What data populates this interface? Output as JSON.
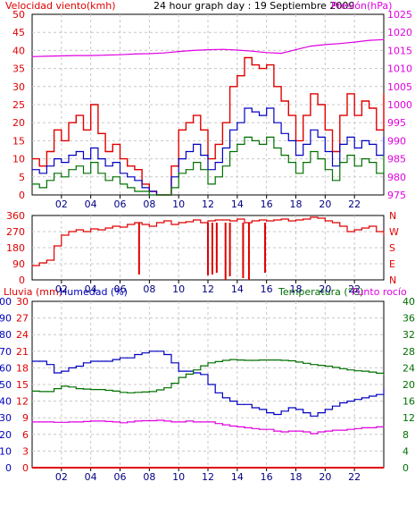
{
  "chart_data": [
    {
      "type": "line",
      "title": "24 hour graph day : 19 Septiembre 2009",
      "left_label": "Velocidad viento(kmh)",
      "right_label": "Presión(hPa)",
      "left_ticks": [
        "0",
        "5",
        "10",
        "15",
        "20",
        "25",
        "30",
        "35",
        "40",
        "45",
        "50"
      ],
      "right_ticks": [
        "975",
        "980",
        "985",
        "990",
        "995",
        "1000",
        "1005",
        "1010",
        "1015",
        "1020",
        "1025"
      ],
      "x_ticks": [
        "02",
        "04",
        "06",
        "08",
        "10",
        "12",
        "14",
        "16",
        "18",
        "20",
        "22"
      ],
      "xlim": [
        0,
        24
      ],
      "ylim_left": [
        0,
        50
      ],
      "ylim_right": [
        975,
        1025
      ],
      "grid": true,
      "series": [
        {
          "key": "gust",
          "axis": "left",
          "color": "#e00000",
          "x": [
            0,
            0.5,
            1,
            1.5,
            2,
            2.5,
            3,
            3.5,
            4,
            4.5,
            5,
            5.5,
            6,
            6.5,
            7,
            7.5,
            8,
            8.5,
            9,
            9.5,
            10,
            10.5,
            11,
            11.5,
            12,
            12.5,
            13,
            13.5,
            14,
            14.5,
            15,
            15.5,
            16,
            16.5,
            17,
            17.5,
            18,
            18.5,
            19,
            19.5,
            20,
            20.5,
            21,
            21.5,
            22,
            22.5,
            23,
            23.5,
            24
          ],
          "values": [
            10,
            8,
            12,
            18,
            15,
            20,
            22,
            18,
            25,
            17,
            12,
            14,
            10,
            8,
            7,
            3,
            1,
            0,
            0,
            8,
            18,
            20,
            22,
            18,
            10,
            14,
            20,
            30,
            33,
            38,
            36,
            35,
            36,
            30,
            26,
            22,
            15,
            22,
            28,
            25,
            18,
            12,
            22,
            28,
            22,
            26,
            24,
            18,
            28
          ]
        },
        {
          "key": "avg",
          "axis": "left",
          "color": "#0000c0",
          "x": [
            0,
            0.5,
            1,
            1.5,
            2,
            2.5,
            3,
            3.5,
            4,
            4.5,
            5,
            5.5,
            6,
            6.5,
            7,
            7.5,
            8,
            8.5,
            9,
            9.5,
            10,
            10.5,
            11,
            11.5,
            12,
            12.5,
            13,
            13.5,
            14,
            14.5,
            15,
            15.5,
            16,
            16.5,
            17,
            17.5,
            18,
            18.5,
            19,
            19.5,
            20,
            20.5,
            21,
            21.5,
            22,
            22.5,
            23,
            23.5,
            24
          ],
          "values": [
            7,
            6,
            8,
            10,
            9,
            11,
            12,
            10,
            13,
            10,
            8,
            9,
            6,
            5,
            4,
            2,
            1,
            0,
            0,
            5,
            10,
            12,
            14,
            11,
            7,
            9,
            13,
            18,
            20,
            24,
            23,
            22,
            24,
            20,
            17,
            15,
            11,
            14,
            18,
            16,
            12,
            8,
            14,
            16,
            13,
            15,
            14,
            11,
            16
          ]
        },
        {
          "key": "wind",
          "axis": "left",
          "color": "#007000",
          "x": [
            0,
            0.5,
            1,
            1.5,
            2,
            2.5,
            3,
            3.5,
            4,
            4.5,
            5,
            5.5,
            6,
            6.5,
            7,
            7.5,
            8,
            8.5,
            9,
            9.5,
            10,
            10.5,
            11,
            11.5,
            12,
            12.5,
            13,
            13.5,
            14,
            14.5,
            15,
            15.5,
            16,
            16.5,
            17,
            17.5,
            18,
            18.5,
            19,
            19.5,
            20,
            20.5,
            21,
            21.5,
            22,
            22.5,
            23,
            23.5,
            24
          ],
          "values": [
            3,
            2,
            4,
            6,
            5,
            7,
            8,
            6,
            9,
            6,
            4,
            5,
            3,
            2,
            1,
            1,
            0,
            0,
            0,
            2,
            6,
            7,
            9,
            7,
            3,
            5,
            8,
            12,
            14,
            16,
            15,
            14,
            16,
            13,
            11,
            9,
            6,
            9,
            12,
            10,
            7,
            4,
            9,
            11,
            8,
            10,
            9,
            6,
            11
          ]
        },
        {
          "key": "pressure",
          "axis": "right",
          "color": "#e000e0",
          "x": [
            0,
            1,
            2,
            3,
            4,
            5,
            6,
            7,
            8,
            9,
            10,
            11,
            12,
            13,
            14,
            15,
            16,
            17,
            18,
            19,
            20,
            21,
            22,
            23,
            24
          ],
          "values": [
            1013.3,
            1013.4,
            1013.5,
            1013.6,
            1013.6,
            1013.7,
            1013.8,
            1014.0,
            1014.1,
            1014.3,
            1014.7,
            1015.0,
            1015.2,
            1015.3,
            1015.1,
            1014.8,
            1014.4,
            1014.2,
            1015.2,
            1016.2,
            1016.6,
            1016.9,
            1017.3,
            1017.8,
            1018.0
          ]
        }
      ]
    },
    {
      "type": "line",
      "left_ticks": [
        "0",
        "90",
        "180",
        "270",
        "360"
      ],
      "right_ticks": [
        "N",
        "E",
        "S",
        "W",
        "N"
      ],
      "x_ticks": [
        "02",
        "04",
        "06",
        "08",
        "10",
        "12",
        "14",
        "16",
        "18",
        "20",
        "22"
      ],
      "xlim": [
        0,
        24
      ],
      "ylim": [
        0,
        360
      ],
      "grid": true,
      "series": [
        {
          "key": "direction",
          "color": "#e00000",
          "x": [
            0,
            0.5,
            1,
            1.5,
            2,
            2.5,
            3,
            3.5,
            4,
            4.5,
            5,
            5.5,
            6,
            6.5,
            7,
            7.5,
            8,
            8.5,
            9,
            9.5,
            10,
            10.5,
            11,
            11.5,
            12,
            12.5,
            13,
            13.5,
            14,
            14.5,
            15,
            15.5,
            16,
            16.5,
            17,
            17.5,
            18,
            18.5,
            19,
            19.5,
            20,
            20.5,
            21,
            21.5,
            22,
            22.5,
            23,
            23.5,
            24
          ],
          "values": [
            80,
            95,
            110,
            190,
            250,
            270,
            280,
            270,
            285,
            280,
            290,
            300,
            295,
            310,
            320,
            310,
            300,
            320,
            330,
            310,
            320,
            325,
            335,
            320,
            330,
            335,
            335,
            330,
            340,
            320,
            330,
            335,
            330,
            335,
            340,
            330,
            335,
            340,
            350,
            345,
            330,
            320,
            300,
            270,
            280,
            290,
            300,
            270,
            250
          ]
        }
      ],
      "spikes": [
        {
          "x": 7.3,
          "to": 30
        },
        {
          "x": 12.0,
          "to": 25
        },
        {
          "x": 12.3,
          "to": 30
        },
        {
          "x": 12.6,
          "to": 40
        },
        {
          "x": 13.2,
          "to": 0
        },
        {
          "x": 13.5,
          "to": 20
        },
        {
          "x": 14.4,
          "to": 10
        },
        {
          "x": 14.8,
          "to": 0
        },
        {
          "x": 15.9,
          "to": 40
        }
      ]
    },
    {
      "type": "line",
      "title_left_1": "Lluvia (mm)",
      "title_left_2": "Humedad (%)",
      "title_right_1": "Temperatura (°C)",
      "title_right_2": "Punto rocío",
      "humidity_ticks": [
        "0",
        "10",
        "20",
        "30",
        "40",
        "50",
        "60",
        "70",
        "80",
        "90",
        "100"
      ],
      "rain_ticks": [
        "0",
        "3",
        "6",
        "9",
        "12",
        "15",
        "18",
        "21",
        "24",
        "27",
        "30"
      ],
      "temp_ticks": [
        "0",
        "4",
        "8",
        "12",
        "16",
        "20",
        "24",
        "28",
        "32",
        "36",
        "40"
      ],
      "x_ticks": [
        "02",
        "04",
        "06",
        "08",
        "10",
        "12",
        "14",
        "16",
        "18",
        "20",
        "22"
      ],
      "xlim": [
        0,
        24
      ],
      "ylim_humidity": [
        0,
        100
      ],
      "ylim_temperature": [
        0,
        40
      ],
      "grid": true,
      "series": [
        {
          "key": "humidity",
          "axis": "humidity",
          "color": "#0000c0",
          "x": [
            0,
            0.5,
            1,
            1.5,
            2,
            2.5,
            3,
            3.5,
            4,
            4.5,
            5,
            5.5,
            6,
            6.5,
            7,
            7.5,
            8,
            8.5,
            9,
            9.5,
            10,
            10.5,
            11,
            11.5,
            12,
            12.5,
            13,
            13.5,
            14,
            14.5,
            15,
            15.5,
            16,
            16.5,
            17,
            17.5,
            18,
            18.5,
            19,
            19.5,
            20,
            20.5,
            21,
            21.5,
            22,
            22.5,
            23,
            23.5,
            24
          ],
          "values": [
            64,
            64,
            62,
            57,
            58,
            60,
            61,
            63,
            64,
            64,
            64,
            65,
            66,
            66,
            68,
            69,
            70,
            70,
            68,
            63,
            58,
            58,
            57,
            56,
            50,
            45,
            42,
            40,
            38,
            38,
            36,
            35,
            33,
            32,
            34,
            36,
            35,
            33,
            31,
            33,
            35,
            37,
            39,
            40,
            41,
            42,
            43,
            44,
            47
          ]
        },
        {
          "key": "temperature",
          "axis": "temperature",
          "color": "#007000",
          "x": [
            0,
            0.5,
            1,
            1.5,
            2,
            2.5,
            3,
            3.5,
            4,
            4.5,
            5,
            5.5,
            6,
            6.5,
            7,
            7.5,
            8,
            8.5,
            9,
            9.5,
            10,
            10.5,
            11,
            11.5,
            12,
            12.5,
            13,
            13.5,
            14,
            14.5,
            15,
            15.5,
            16,
            16.5,
            17,
            17.5,
            18,
            18.5,
            19,
            19.5,
            20,
            20.5,
            21,
            21.5,
            22,
            22.5,
            23,
            23.5,
            24
          ],
          "values": [
            18.4,
            18.3,
            18.3,
            19,
            19.6,
            19.4,
            19.0,
            18.9,
            18.8,
            18.8,
            18.6,
            18.4,
            18.1,
            18.0,
            18.1,
            18.2,
            18.3,
            18.7,
            19.2,
            20.3,
            21.7,
            22.5,
            23.5,
            24.5,
            25.2,
            25.5,
            25.8,
            26.0,
            25.9,
            25.8,
            25.8,
            25.9,
            25.9,
            25.9,
            25.8,
            25.7,
            25.4,
            25.1,
            24.8,
            24.6,
            24.4,
            24.1,
            23.8,
            23.5,
            23.3,
            23.2,
            23.0,
            22.7,
            22.4
          ]
        },
        {
          "key": "dewpoint",
          "axis": "temperature",
          "color": "#e000e0",
          "x": [
            0,
            0.5,
            1,
            1.5,
            2,
            2.5,
            3,
            3.5,
            4,
            4.5,
            5,
            5.5,
            6,
            6.5,
            7,
            7.5,
            8,
            8.5,
            9,
            9.5,
            10,
            10.5,
            11,
            11.5,
            12,
            12.5,
            13,
            13.5,
            14,
            14.5,
            15,
            15.5,
            16,
            16.5,
            17,
            17.5,
            18,
            18.5,
            19,
            19.5,
            20,
            20.5,
            21,
            21.5,
            22,
            22.5,
            23,
            23.5,
            24
          ],
          "values": [
            11.0,
            11.0,
            11.0,
            10.9,
            10.9,
            11.0,
            11.0,
            11.1,
            11.2,
            11.2,
            11.1,
            11.0,
            10.8,
            11.0,
            11.2,
            11.3,
            11.3,
            11.4,
            11.2,
            11.0,
            11.0,
            11.2,
            11.0,
            11.0,
            11.0,
            10.6,
            10.3,
            10.0,
            9.8,
            9.6,
            9.4,
            9.2,
            9.2,
            8.8,
            8.6,
            8.8,
            8.8,
            8.6,
            8.2,
            8.6,
            8.8,
            9.0,
            9.0,
            9.2,
            9.4,
            9.6,
            9.6,
            9.8,
            9.8
          ]
        },
        {
          "key": "rain",
          "axis": "rain",
          "color": "#e00000",
          "x": [
            0,
            24
          ],
          "values": [
            0,
            0
          ]
        }
      ]
    }
  ]
}
